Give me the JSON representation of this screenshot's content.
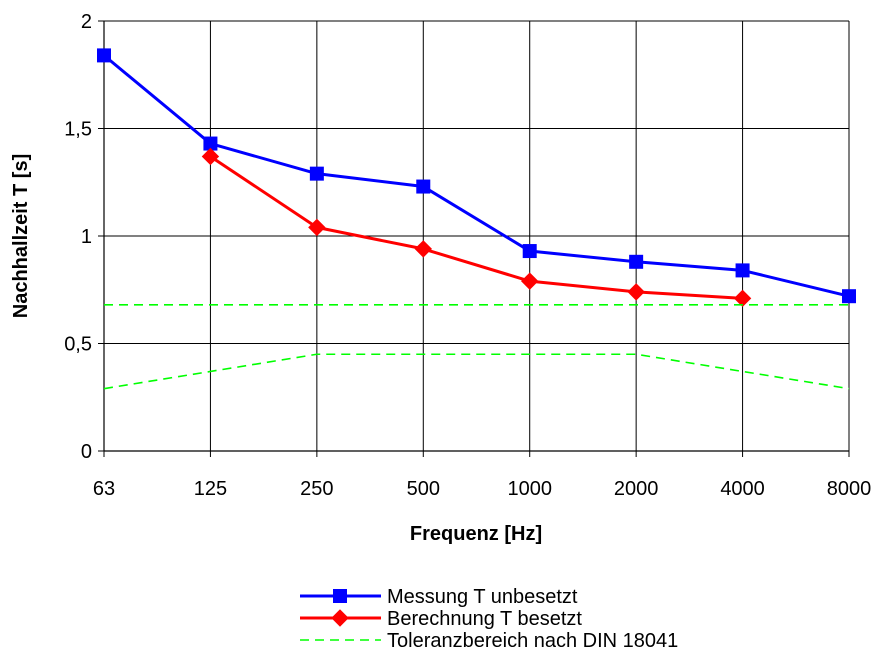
{
  "chart_data": {
    "type": "line",
    "title": "",
    "xlabel": "Frequenz [Hz]",
    "ylabel": "Nachhallzeit T [s]",
    "categories": [
      "63",
      "125",
      "250",
      "500",
      "1000",
      "2000",
      "4000",
      "8000"
    ],
    "y_ticks": [
      "0",
      "0,5",
      "1",
      "1,5",
      "2"
    ],
    "ylim": [
      0,
      2
    ],
    "grid": true,
    "legend_position": "bottom",
    "series": [
      {
        "name": "Messung T unbesetzt",
        "color": "#0000ff",
        "marker": "square",
        "style": "solid",
        "values": [
          1.84,
          1.43,
          1.29,
          1.23,
          0.93,
          0.88,
          0.84,
          0.72
        ]
      },
      {
        "name": "Berechnung T besetzt",
        "color": "#ff0000",
        "marker": "diamond",
        "style": "solid",
        "values": [
          null,
          1.37,
          1.04,
          0.94,
          0.79,
          0.74,
          0.71,
          null
        ]
      },
      {
        "name": "Toleranzbereich nach DIN 18041",
        "color": "#00ff00",
        "marker": "none",
        "style": "dashed",
        "values": [
          0.68,
          0.68,
          0.68,
          0.68,
          0.68,
          0.68,
          0.68,
          0.68
        ]
      },
      {
        "name": "",
        "color": "#00ff00",
        "marker": "none",
        "style": "dashed",
        "values": [
          0.29,
          0.37,
          0.45,
          0.45,
          0.45,
          0.45,
          0.37,
          0.29
        ]
      }
    ]
  }
}
